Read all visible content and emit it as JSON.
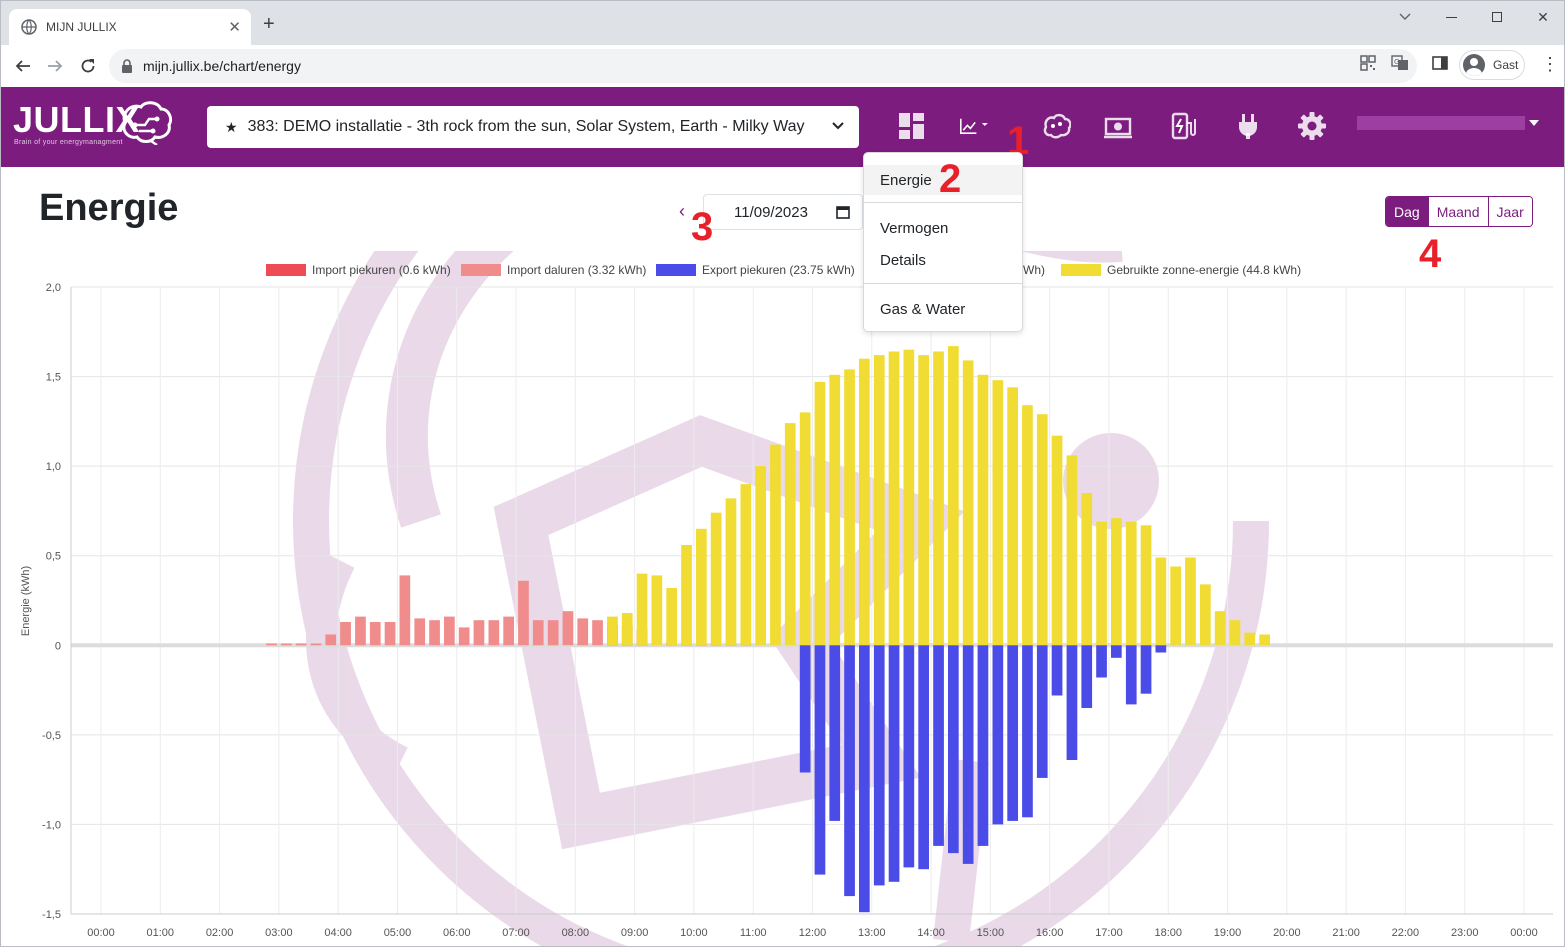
{
  "browser": {
    "tab_title": "MIJN JULLIX",
    "url": "mijn.jullix.be/chart/energy",
    "profile_label": "Gast"
  },
  "app": {
    "brand": "JULLIX",
    "tagline": "Brain of your energymanagment",
    "installation": "383: DEMO installatie - 3th rock from the sun, Solar System, Earth - Milky Way",
    "page_title": "Energie",
    "date": "11/09/2023",
    "periods": [
      "Dag",
      "Maand",
      "Jaar"
    ],
    "active_period": "Dag",
    "menu": {
      "items": [
        "Energie",
        "Vermogen",
        "Details",
        "Gas & Water"
      ],
      "selected": "Energie"
    },
    "annotations": [
      "1",
      "2",
      "3",
      "4"
    ],
    "colors": {
      "brand": "#7b1c7e",
      "import_peak": "#ee4b55",
      "import_offpeak": "#f08c8c",
      "export_peak": "#4b4be8",
      "solar_used": "#f0dc32"
    }
  },
  "chart_data": {
    "type": "bar",
    "ylabel": "Energie (kWh)",
    "ylim": [
      -1.5,
      2.0
    ],
    "yticks": [
      "2,0",
      "1,5",
      "1,0",
      "0,5",
      "0",
      "-0,5",
      "-1,0",
      "-1,5"
    ],
    "xticks": [
      "00:00",
      "01:00",
      "02:00",
      "03:00",
      "04:00",
      "05:00",
      "06:00",
      "07:00",
      "08:00",
      "09:00",
      "10:00",
      "11:00",
      "12:00",
      "13:00",
      "14:00",
      "15:00",
      "16:00",
      "17:00",
      "18:00",
      "19:00",
      "20:00",
      "21:00",
      "22:00",
      "23:00",
      "00:00"
    ],
    "legend": [
      {
        "label": "Import piekuren (0.6 kWh)",
        "color": "#ee4b55"
      },
      {
        "label": "Import daluren (3.32 kWh)",
        "color": "#f08c8c"
      },
      {
        "label": "Export piekuren (23.75 kWh)",
        "color": "#4b4be8"
      },
      {
        "label": "kWh)",
        "color": ""
      },
      {
        "label": "Gebruikte zonne-energie (44.8 kWh)",
        "color": "#f0dc32"
      }
    ],
    "intervals_per_hour": 4,
    "series": [
      {
        "name": "Import daluren (3.32 kWh)",
        "start_index": 12,
        "values": [
          0.01,
          0.01,
          0.01,
          0.01,
          0.06,
          0.13,
          0.16,
          0.13,
          0.13,
          0.39,
          0.15,
          0.14,
          0.16,
          0.1,
          0.14,
          0.14,
          0.16,
          0.36,
          0.14,
          0.14,
          0.19,
          0.15,
          0.14
        ]
      },
      {
        "name": "Import piekuren (0.6 kWh)",
        "start_index": 35,
        "values": [
          0.11,
          0.11,
          0.09,
          0.0,
          0.02,
          0.01,
          0.01,
          0.01,
          0.01,
          0.01
        ]
      },
      {
        "name": "Gebruikte zonne-energie (44.8 kWh)",
        "start_index": 35,
        "values": [
          0.16,
          0.18,
          0.4,
          0.39,
          0.32,
          0.56,
          0.65,
          0.74,
          0.82,
          0.9,
          1.0,
          1.12,
          1.24,
          1.3,
          1.47,
          1.51,
          1.54,
          1.6,
          1.62,
          1.64,
          1.65,
          1.62,
          1.64,
          1.67,
          1.59,
          1.51,
          1.48,
          1.44,
          1.34,
          1.29,
          1.17,
          1.06,
          0.85,
          0.69,
          0.71,
          0.69,
          0.67,
          0.49,
          0.44,
          0.49,
          0.34,
          0.19,
          0.14,
          0.07,
          0.06
        ]
      },
      {
        "name": "Export piekuren (23.75 kWh)",
        "start_index": 48,
        "values": [
          -0.71,
          -1.28,
          -0.98,
          -1.4,
          -1.49,
          -1.34,
          -1.32,
          -1.24,
          -1.25,
          -1.12,
          -1.16,
          -1.22,
          -1.12,
          -1.0,
          -0.98,
          -0.96,
          -0.74,
          -0.28,
          -0.64,
          -0.35,
          -0.18,
          -0.07,
          -0.33,
          -0.27,
          -0.04
        ]
      }
    ]
  }
}
